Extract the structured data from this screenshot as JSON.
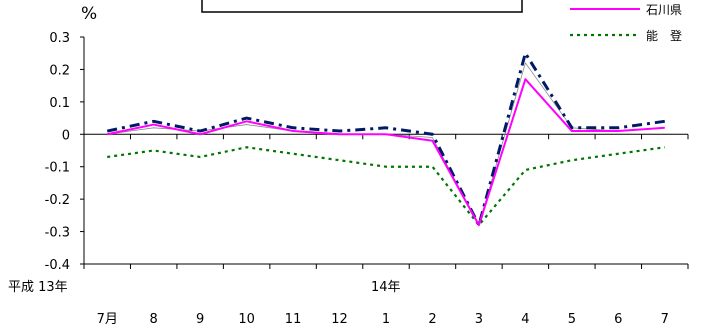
{
  "chart_data": {
    "type": "line",
    "ylabel": "%",
    "ylim": [
      -0.4,
      0.3
    ],
    "y_ticks": [
      "0.3",
      "0.2",
      "0.1",
      "0",
      "-0.1",
      "-0.2",
      "-0.3",
      "-0.4"
    ],
    "y_tick_values": [
      0.3,
      0.2,
      0.1,
      0,
      -0.1,
      -0.2,
      -0.3,
      -0.4
    ],
    "categories": [
      "7月",
      "8",
      "9",
      "10",
      "11",
      "12",
      "1",
      "2",
      "3",
      "4",
      "5",
      "6",
      "7"
    ],
    "period_labels": [
      {
        "text": "平成 13年",
        "at_index": 0
      },
      {
        "text": "14年",
        "at_index": 6
      }
    ],
    "legend_position": "top-right",
    "series": [
      {
        "name": "石川県",
        "color": "#ff00ff",
        "style": "solid",
        "values": [
          0.0,
          0.03,
          0.0,
          0.04,
          0.01,
          0.0,
          0.0,
          -0.02,
          -0.28,
          0.17,
          0.01,
          0.01,
          0.02
        ]
      },
      {
        "name": "能　登",
        "color": "#007700",
        "style": "dotted",
        "values": [
          -0.07,
          -0.05,
          -0.07,
          -0.04,
          -0.06,
          -0.08,
          -0.1,
          -0.1,
          -0.28,
          -0.11,
          -0.08,
          -0.06,
          -0.04
        ]
      },
      {
        "name": "",
        "color": "#001a66",
        "style": "dashdot",
        "values": [
          0.01,
          0.04,
          0.01,
          0.05,
          0.02,
          0.01,
          0.02,
          0.0,
          -0.28,
          0.25,
          0.02,
          0.02,
          0.04
        ]
      },
      {
        "name": "",
        "color": "#888888",
        "style": "thin",
        "values": [
          0.0,
          0.02,
          0.01,
          0.03,
          0.01,
          0.0,
          0.0,
          -0.01,
          -0.28,
          0.22,
          0.02,
          0.01,
          0.02
        ]
      }
    ]
  }
}
